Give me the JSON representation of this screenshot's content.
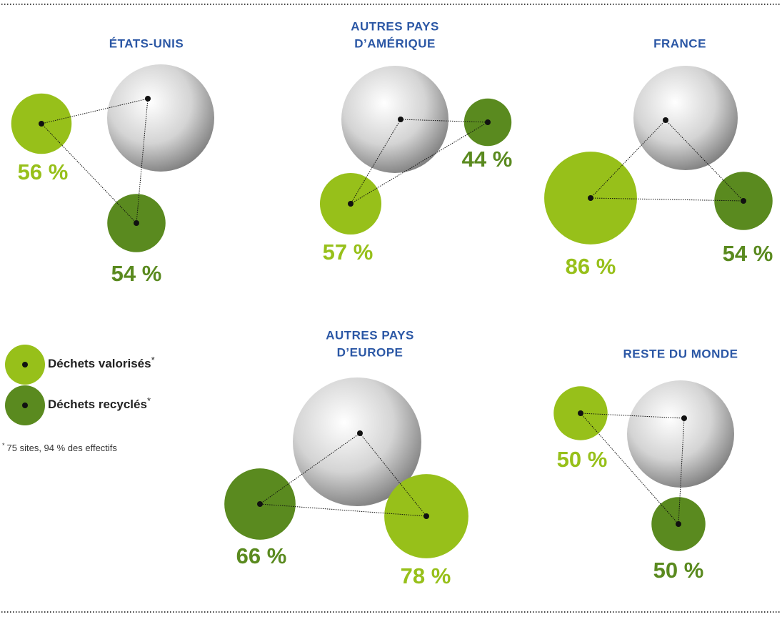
{
  "legend": [
    {
      "label": "Déchets valorisés",
      "mark": "*",
      "color": "#97c01a"
    },
    {
      "label": "Déchets recyclés",
      "mark": "*",
      "color": "#5a8a1f"
    }
  ],
  "footnote": {
    "mark": "*",
    "text": "75 sites, 94 % des effectifs"
  },
  "regions": [
    {
      "title": [
        "ÉTATS-UNIS"
      ],
      "valorises": 56,
      "valorises_label": "56 %",
      "recycles": 54,
      "recycles_label": "54 %"
    },
    {
      "title": [
        "AUTRES PAYS",
        "D’AMÉRIQUE"
      ],
      "valorises": 57,
      "valorises_label": "57 %",
      "recycles": 44,
      "recycles_label": "44 %"
    },
    {
      "title": [
        "FRANCE"
      ],
      "valorises": 86,
      "valorises_label": "86 %",
      "recycles": 54,
      "recycles_label": "54 %"
    },
    {
      "title": [
        "AUTRES PAYS",
        "D’EUROPE"
      ],
      "valorises": 78,
      "valorises_label": "78 %",
      "recycles": 66,
      "recycles_label": "66 %"
    },
    {
      "title": [
        "RESTE DU MONDE"
      ],
      "valorises": 50,
      "valorises_label": "50 %",
      "recycles": 50,
      "recycles_label": "50 %"
    }
  ]
}
